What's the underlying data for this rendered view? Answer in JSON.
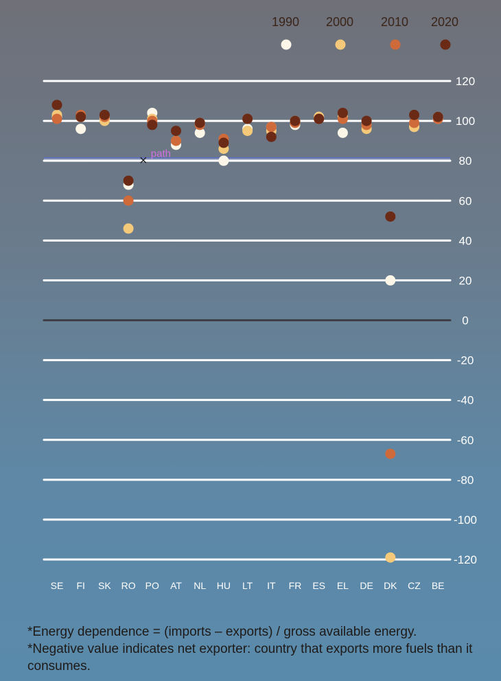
{
  "chart_data": {
    "type": "scatter",
    "title": "",
    "xlabel": "",
    "ylabel": "",
    "categories": [
      "SE",
      "FI",
      "SK",
      "RO",
      "PO",
      "AT",
      "NL",
      "HU",
      "LT",
      "IT",
      "FR",
      "ES",
      "EL",
      "DE",
      "DK",
      "CZ",
      "BE"
    ],
    "ylim": [
      -120,
      120
    ],
    "yticks": [
      120,
      100,
      80,
      60,
      40,
      20,
      0,
      -20,
      -40,
      -60,
      -80,
      -100,
      -120
    ],
    "grid": true,
    "legend_position": "top-right",
    "series": [
      {
        "name": "1990",
        "color": "#fbf6e8",
        "values": [
          102,
          96,
          101,
          68,
          104,
          88,
          94,
          80,
          96,
          97,
          98,
          102,
          94,
          98,
          20,
          97,
          101
        ]
      },
      {
        "name": "2000",
        "color": "#f5c97a",
        "values": [
          103,
          102,
          100,
          46,
          101,
          90,
          99,
          86,
          95,
          95,
          100,
          102,
          102,
          96,
          -119,
          97,
          102
        ]
      },
      {
        "name": "2010",
        "color": "#cf6a3b",
        "values": [
          101,
          103,
          102,
          60,
          100,
          90,
          98,
          91,
          101,
          97,
          99,
          101,
          101,
          98,
          -67,
          99,
          101
        ]
      },
      {
        "name": "2020",
        "color": "#6a2a16",
        "values": [
          108,
          102,
          103,
          70,
          98,
          95,
          99,
          89,
          101,
          92,
          100,
          101,
          104,
          100,
          52,
          103,
          102
        ]
      }
    ],
    "annotations": [
      {
        "text": "path",
        "x": "PO",
        "y": 82,
        "color": "#d070e0"
      }
    ],
    "reference_line": {
      "y": 81.5,
      "color": "#5b6fd6"
    }
  },
  "notes": [
    "*Energy dependence = (imports – exports) / gross available energy.",
    "*Negative value indicates net exporter: country that exports more fuels than it consumes."
  ]
}
